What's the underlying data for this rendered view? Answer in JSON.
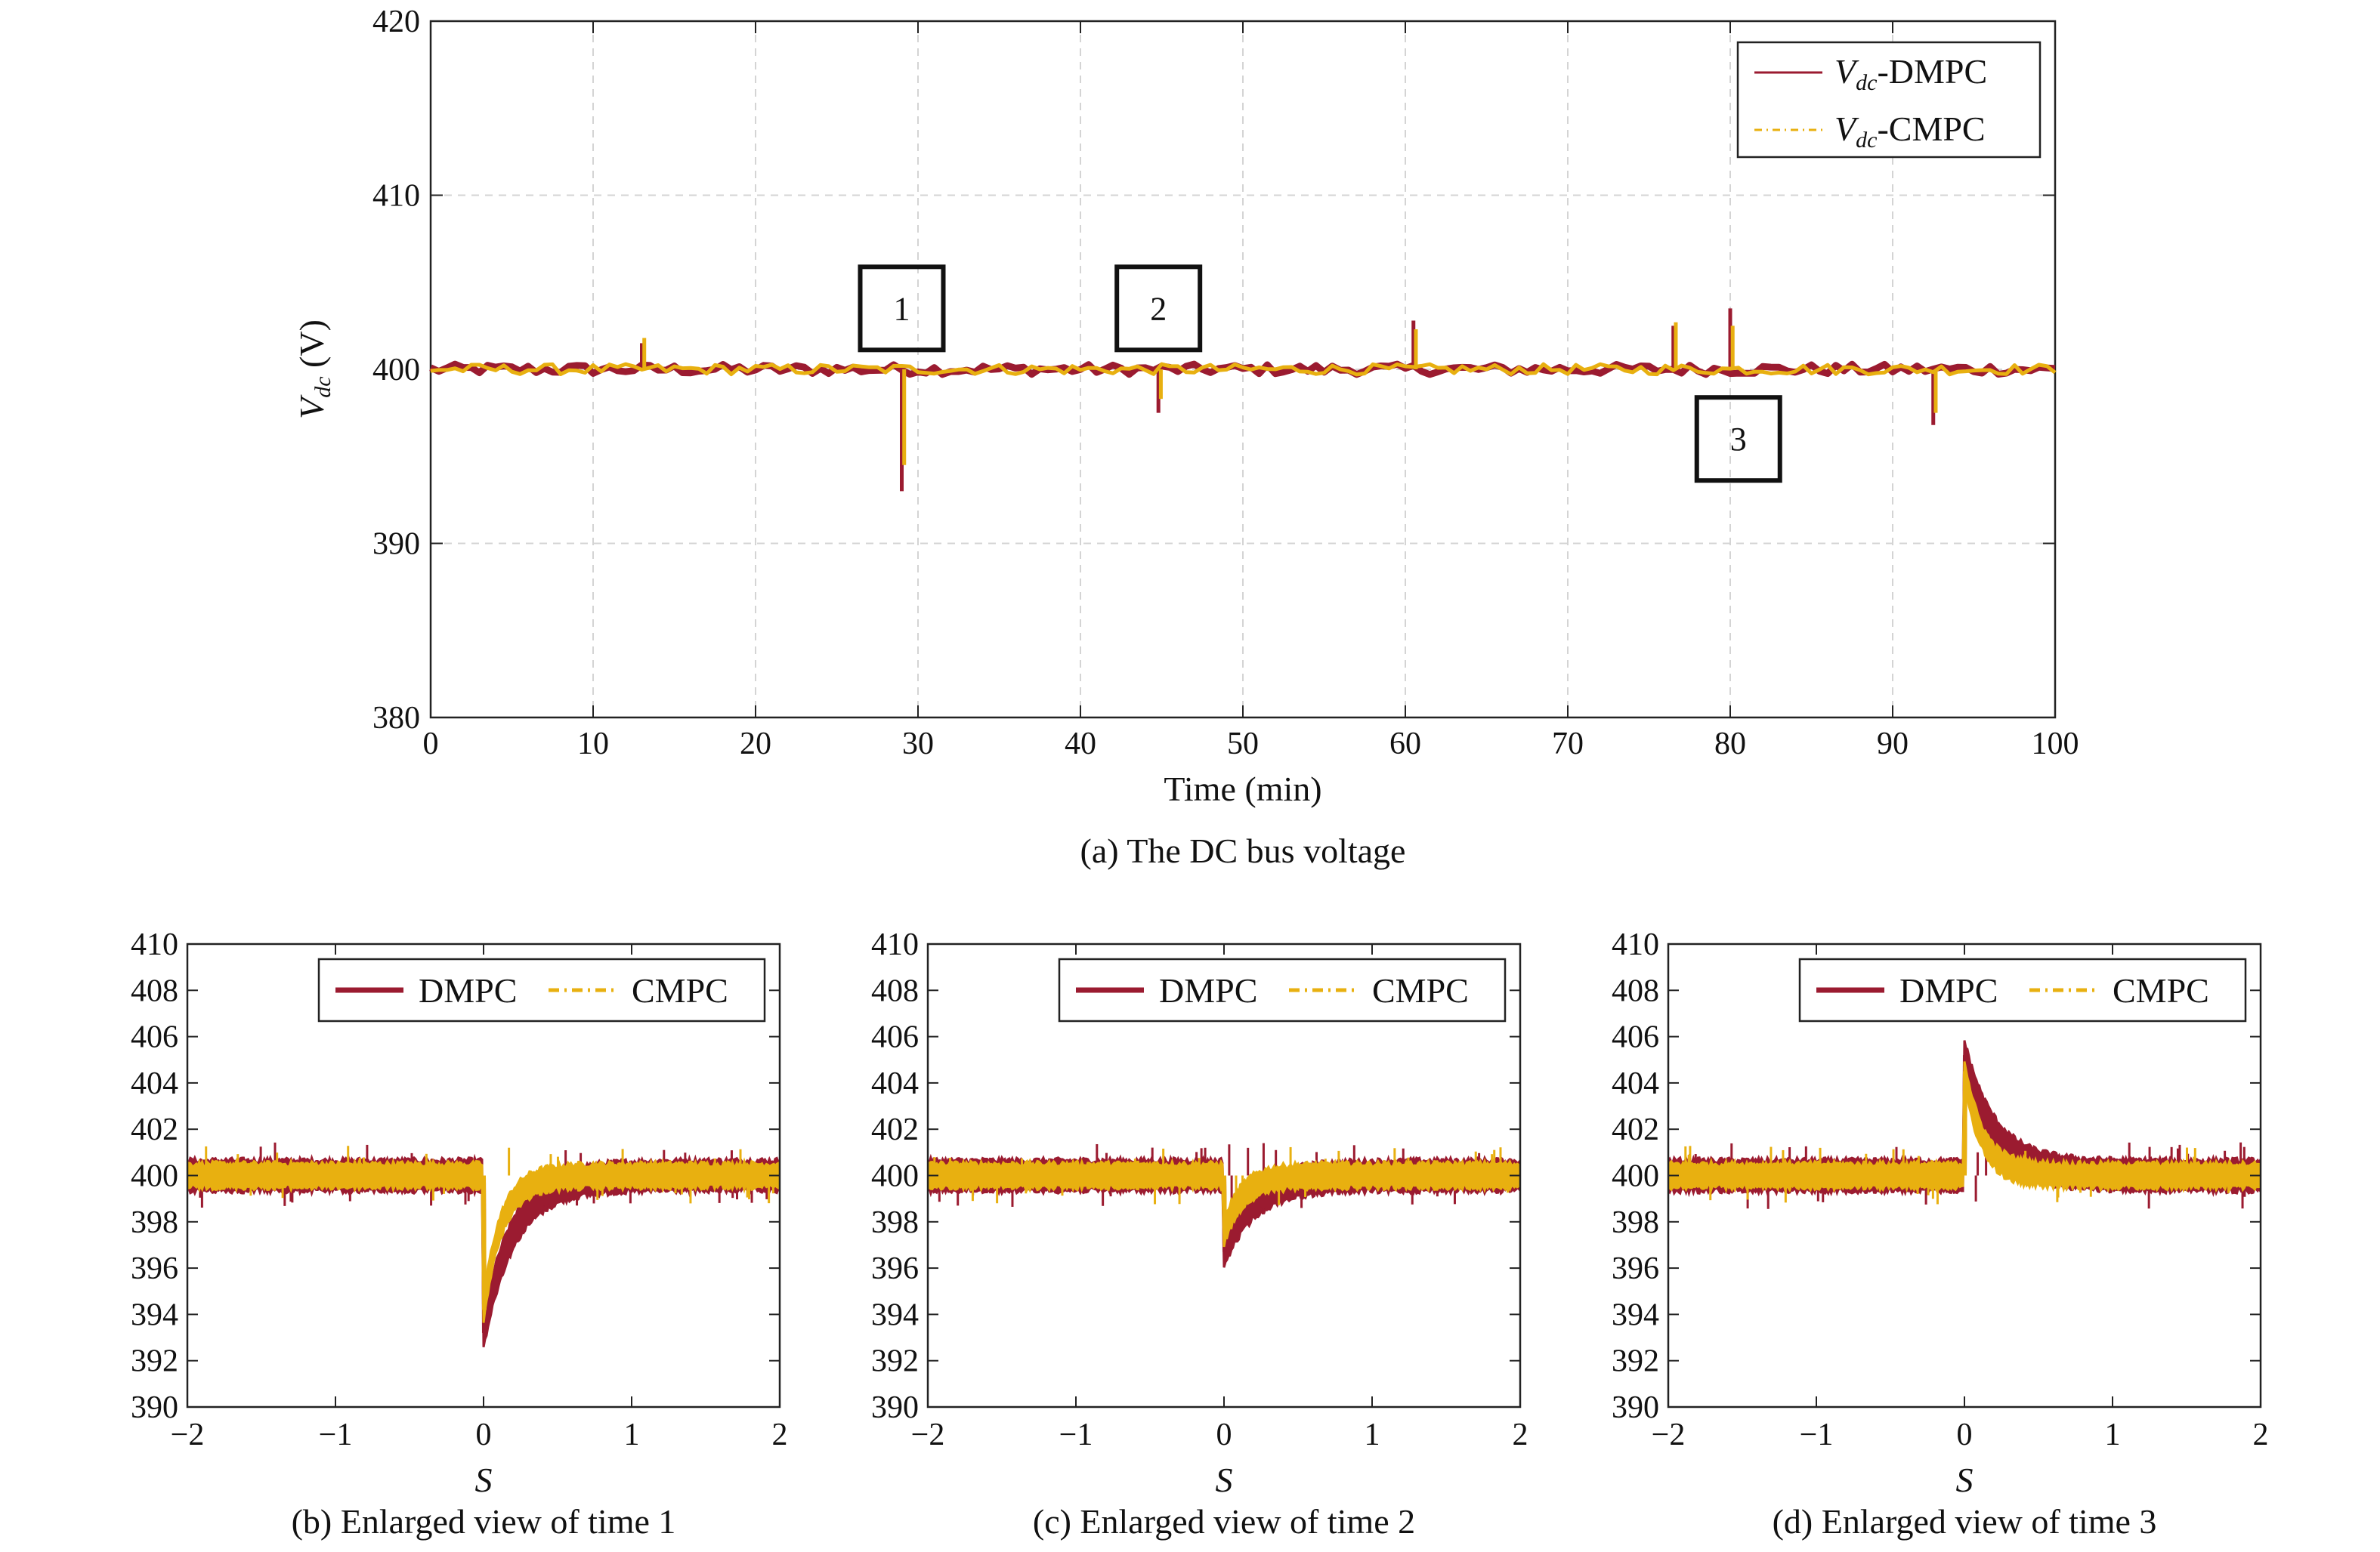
{
  "chart_data": [
    {
      "id": "a",
      "type": "line",
      "caption": "(a) The DC bus voltage",
      "title": "",
      "xlabel": "Time (min)",
      "ylabel_main": "V",
      "ylabel_sub": "dc",
      "ylabel_unit": " (V)",
      "xlim": [
        0,
        100
      ],
      "ylim": [
        380,
        420
      ],
      "xticks": [
        0,
        10,
        20,
        30,
        40,
        50,
        60,
        70,
        80,
        90,
        100
      ],
      "yticks": [
        380,
        390,
        400,
        410,
        420
      ],
      "grid": true,
      "legend_position": "top-right",
      "colors": {
        "DMPC": "#9b1b30",
        "CMPC": "#e8b010"
      },
      "series": [
        {
          "name": "DMPC",
          "legend_main": "V",
          "legend_sub": "dc",
          "legend_suffix": "-DMPC",
          "baseline": 400,
          "ripple": 0.3,
          "events": [
            {
              "t": 13,
              "peak": 401.5
            },
            {
              "t": 29,
              "peak": 393
            },
            {
              "t": 44.8,
              "peak": 397.5
            },
            {
              "t": 60.5,
              "peak": 402.8
            },
            {
              "t": 76.5,
              "peak": 402.5
            },
            {
              "t": 80,
              "peak": 403.5
            },
            {
              "t": 92.5,
              "peak": 396.8
            }
          ]
        },
        {
          "name": "CMPC",
          "legend_main": "V",
          "legend_sub": "dc",
          "legend_suffix": "-CMPC",
          "baseline": 400,
          "ripple": 0.3,
          "events": [
            {
              "t": 13,
              "peak": 401.8
            },
            {
              "t": 29,
              "peak": 394.5
            },
            {
              "t": 44.8,
              "peak": 398.3
            },
            {
              "t": 60.5,
              "peak": 402.3
            },
            {
              "t": 76.5,
              "peak": 402.7
            },
            {
              "t": 80,
              "peak": 402.5
            },
            {
              "t": 92.5,
              "peak": 397.5
            }
          ]
        }
      ],
      "annotations": [
        {
          "label": "1",
          "x": 29,
          "y": 403.5
        },
        {
          "label": "2",
          "x": 44.8,
          "y": 403.5
        },
        {
          "label": "3",
          "x": 80.5,
          "y": 396
        }
      ]
    },
    {
      "id": "b",
      "type": "line",
      "caption": "(b) Enlarged view of time 1",
      "xlabel": "S",
      "xlim": [
        -2,
        2
      ],
      "ylim": [
        390,
        410
      ],
      "xticks": [
        -2,
        -1,
        0,
        1,
        2
      ],
      "xtick_labels": [
        "−2",
        "−1",
        "0",
        "1",
        "2"
      ],
      "yticks": [
        390,
        392,
        394,
        396,
        398,
        400,
        402,
        404,
        406,
        408,
        410
      ],
      "grid": false,
      "legend_position": "top-right",
      "series": [
        {
          "name": "DMPC",
          "baseline": 400,
          "band": 0.65,
          "peak": 393.2,
          "tau": 0.2
        },
        {
          "name": "CMPC",
          "baseline": 400,
          "band": 0.5,
          "peak": 394.2,
          "tau": 0.12
        }
      ]
    },
    {
      "id": "c",
      "type": "line",
      "caption": "(c) Enlarged view of time 2",
      "xlabel": "S",
      "xlim": [
        -2,
        2
      ],
      "ylim": [
        390,
        410
      ],
      "xticks": [
        -2,
        -1,
        0,
        1,
        2
      ],
      "xtick_labels": [
        "−2",
        "−1",
        "0",
        "1",
        "2"
      ],
      "yticks": [
        390,
        392,
        394,
        396,
        398,
        400,
        402,
        404,
        406,
        408,
        410
      ],
      "grid": false,
      "legend_position": "top-right",
      "series": [
        {
          "name": "DMPC",
          "baseline": 400,
          "band": 0.65,
          "peak": 396.7,
          "tau": 0.2
        },
        {
          "name": "CMPC",
          "baseline": 400,
          "band": 0.5,
          "peak": 397.5,
          "tau": 0.12
        }
      ]
    },
    {
      "id": "d",
      "type": "line",
      "caption": "(d) Enlarged view of time 3",
      "xlabel": "S",
      "xlim": [
        -2,
        2
      ],
      "ylim": [
        390,
        410
      ],
      "xticks": [
        -2,
        -1,
        0,
        1,
        2
      ],
      "xtick_labels": [
        "−2",
        "−1",
        "0",
        "1",
        "2"
      ],
      "yticks": [
        390,
        392,
        394,
        396,
        398,
        400,
        402,
        404,
        406,
        408,
        410
      ],
      "grid": false,
      "legend_position": "top-right",
      "series": [
        {
          "name": "DMPC",
          "baseline": 400,
          "band": 0.65,
          "peak": 405.2,
          "tau": 0.2
        },
        {
          "name": "CMPC",
          "baseline": 400,
          "band": 0.5,
          "peak": 404.5,
          "tau": 0.12
        }
      ]
    }
  ]
}
